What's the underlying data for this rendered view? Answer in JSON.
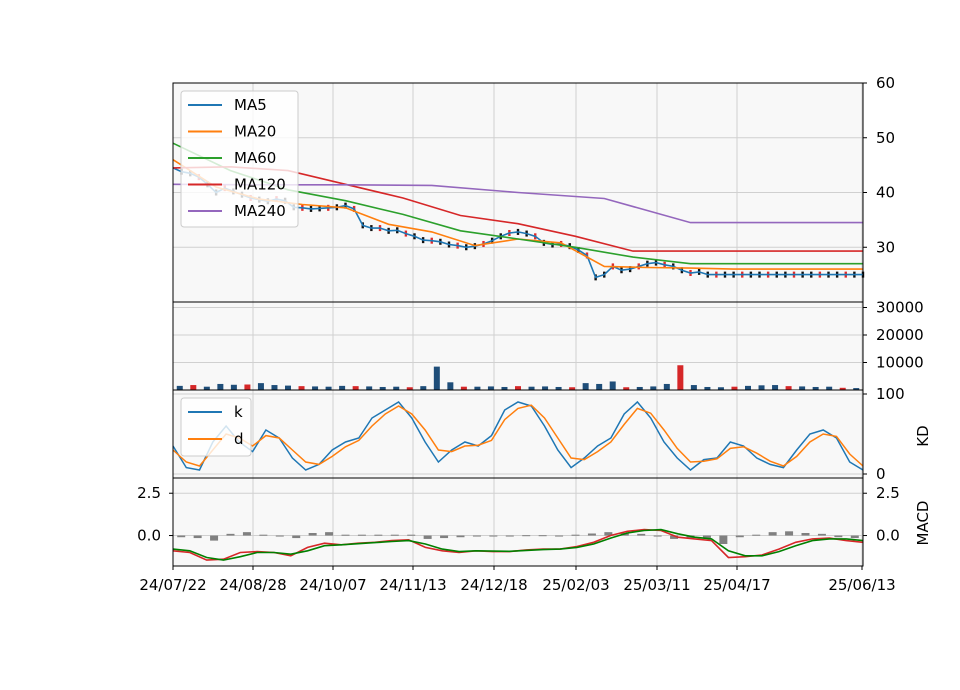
{
  "chart_data": [
    {
      "type": "line",
      "panel": "price",
      "title": "",
      "ylim": [
        20,
        60
      ],
      "yticks": [
        30,
        40,
        50,
        60
      ],
      "yaxis_side": "right",
      "grid": true,
      "legend_position": "top-left",
      "candles": {
        "up_color": "#e02a2a",
        "down_color": "#111111",
        "note_colors_only": true
      },
      "series": [
        {
          "name": "MA5",
          "color": "#1f77b4",
          "x": [
            0,
            3,
            6,
            9,
            12,
            15,
            18,
            21,
            24,
            27,
            30,
            33,
            36,
            39,
            42,
            45,
            48,
            51,
            54,
            57,
            60,
            63,
            66,
            69,
            72,
            75,
            78,
            81,
            84,
            87,
            90,
            93,
            96,
            99,
            102,
            105,
            108,
            111,
            114,
            117,
            120,
            123,
            126,
            129,
            132,
            135,
            138,
            141,
            144,
            147,
            150,
            153,
            156,
            159,
            162,
            165,
            168,
            171,
            174,
            177,
            180,
            183,
            186,
            189,
            192,
            195,
            198,
            201,
            204,
            207,
            210,
            213,
            216,
            219,
            222,
            225,
            228,
            231,
            234,
            237,
            240
          ],
          "y": [
            44.5,
            43.8,
            43.5,
            42.8,
            41.5,
            40.0,
            40.8,
            40.2,
            39.6,
            39.0,
            38.7,
            38.4,
            38.8,
            38.5,
            37.3,
            37.2,
            37.0,
            37.1,
            37.2,
            37.3,
            37.6,
            37.0,
            34.0,
            33.5,
            33.5,
            33.0,
            33.1,
            32.5,
            32.0,
            31.3,
            31.2,
            31.0,
            30.5,
            30.3,
            30.0,
            30.2,
            30.6,
            31.2,
            32.0,
            32.6,
            32.8,
            32.5,
            32.0,
            30.8,
            30.5,
            30.6,
            30.2,
            29.5,
            28.5,
            24.5,
            25.0,
            26.5,
            25.8,
            26.0,
            26.5,
            27.0,
            27.2,
            26.8,
            26.5,
            25.8,
            25.3,
            25.5,
            25.0,
            25.0,
            25.0,
            25.0,
            25.0,
            25.0,
            25.0,
            25.0,
            25.0,
            25.0,
            25.0,
            25.0,
            25.0,
            25.0,
            25.0,
            25.0,
            25.0,
            25.0,
            25.0
          ]
        },
        {
          "name": "MA20",
          "color": "#ff7f0e",
          "x": [
            0,
            15,
            30,
            45,
            60,
            75,
            90,
            105,
            120,
            135,
            150,
            165,
            180,
            195,
            210,
            225,
            240
          ],
          "y": [
            46.0,
            41.0,
            38.8,
            37.8,
            37.2,
            34.2,
            32.8,
            30.3,
            31.5,
            30.8,
            26.5,
            26.3,
            26.2,
            26.0,
            26.0,
            26.0,
            26.0
          ]
        },
        {
          "name": "MA60",
          "color": "#2ca02c",
          "x": [
            0,
            20,
            40,
            60,
            80,
            100,
            120,
            140,
            160,
            180,
            200,
            220,
            240
          ],
          "y": [
            49.0,
            44.0,
            40.5,
            38.5,
            36.0,
            33.0,
            31.5,
            30.0,
            28.2,
            27.0,
            27.0,
            27.0,
            27.0
          ]
        },
        {
          "name": "MA120",
          "color": "#d62728",
          "x": [
            0,
            20,
            40,
            60,
            80,
            100,
            120,
            140,
            160,
            180,
            200,
            220,
            240
          ],
          "y": [
            44.5,
            44.7,
            44.0,
            41.5,
            39.0,
            35.8,
            34.3,
            32.0,
            29.3,
            29.3,
            29.3,
            29.3,
            29.3
          ]
        },
        {
          "name": "MA240",
          "color": "#9467bd",
          "x": [
            0,
            30,
            60,
            90,
            120,
            150,
            180,
            210,
            240
          ],
          "y": [
            41.5,
            41.4,
            41.4,
            41.3,
            40.0,
            38.9,
            34.5,
            34.5,
            34.5
          ]
        }
      ]
    },
    {
      "type": "bar",
      "panel": "volume",
      "ylim": [
        0,
        30000
      ],
      "yticks": [
        10000,
        20000,
        30000
      ],
      "yaxis_side": "right",
      "grid": true,
      "bar_color": "#1f4e79",
      "values": [
        1500,
        1800,
        1200,
        2200,
        1900,
        2000,
        2500,
        1800,
        1600,
        1400,
        1300,
        1200,
        1500,
        1400,
        1300,
        1100,
        1200,
        1000,
        1400,
        8500,
        2800,
        1200,
        1200,
        1300,
        1100,
        1400,
        1200,
        1300,
        1100,
        1000,
        2500,
        2200,
        3100,
        1000,
        1100,
        1300,
        2200,
        9000,
        1800,
        1100,
        1000,
        1200,
        1500,
        1700,
        1800,
        1400,
        1300,
        1100,
        1200,
        800,
        700
      ]
    },
    {
      "type": "line",
      "panel": "kd",
      "ylim": [
        0,
        100
      ],
      "yticks": [
        0,
        100
      ],
      "yaxis_side": "right",
      "ylabel": "KD",
      "grid": true,
      "legend_position": "top-left",
      "series": [
        {
          "name": "k",
          "color": "#1f77b4",
          "values": [
            35,
            8,
            5,
            40,
            60,
            40,
            28,
            55,
            45,
            20,
            5,
            12,
            30,
            40,
            45,
            70,
            80,
            90,
            70,
            40,
            15,
            30,
            40,
            35,
            48,
            80,
            90,
            85,
            60,
            30,
            8,
            20,
            35,
            45,
            75,
            90,
            70,
            40,
            20,
            5,
            18,
            20,
            40,
            35,
            20,
            12,
            8,
            30,
            50,
            55,
            45,
            15,
            5
          ]
        },
        {
          "name": "d",
          "color": "#ff7f0e",
          "values": [
            30,
            15,
            10,
            30,
            50,
            45,
            35,
            48,
            45,
            30,
            15,
            12,
            22,
            34,
            42,
            60,
            75,
            85,
            75,
            55,
            30,
            28,
            35,
            36,
            42,
            68,
            82,
            86,
            70,
            45,
            20,
            18,
            28,
            40,
            62,
            82,
            76,
            55,
            32,
            15,
            16,
            19,
            32,
            34,
            26,
            16,
            10,
            22,
            40,
            50,
            47,
            25,
            10
          ]
        }
      ]
    },
    {
      "type": "line",
      "panel": "macd",
      "ylim": [
        -1.8,
        3.4
      ],
      "yticks_left": [
        "0.0",
        "2.5"
      ],
      "yticks_right": [
        "0.0",
        "2.5"
      ],
      "ylabel": "MACD",
      "grid": true,
      "histogram_color": "#808080",
      "series": [
        {
          "name": "",
          "color": "#d62728",
          "values": [
            -0.9,
            -1.0,
            -1.45,
            -1.4,
            -1.0,
            -0.95,
            -1.0,
            -1.2,
            -0.7,
            -0.45,
            -0.55,
            -0.45,
            -0.4,
            -0.3,
            -0.25,
            -0.7,
            -0.9,
            -1.0,
            -0.9,
            -0.95,
            -0.95,
            -0.85,
            -0.8,
            -0.8,
            -0.65,
            -0.4,
            0.0,
            0.25,
            0.35,
            0.3,
            -0.1,
            -0.2,
            -0.3,
            -1.3,
            -1.25,
            -1.15,
            -0.8,
            -0.4,
            -0.2,
            -0.15,
            -0.3,
            -0.4
          ]
        },
        {
          "name": "",
          "color": "#008000",
          "values": [
            -0.8,
            -0.9,
            -1.3,
            -1.45,
            -1.25,
            -1.0,
            -1.0,
            -1.1,
            -0.9,
            -0.6,
            -0.55,
            -0.48,
            -0.42,
            -0.35,
            -0.3,
            -0.5,
            -0.8,
            -0.95,
            -0.9,
            -0.92,
            -0.93,
            -0.88,
            -0.83,
            -0.8,
            -0.7,
            -0.5,
            -0.15,
            0.15,
            0.3,
            0.35,
            0.1,
            -0.1,
            -0.2,
            -0.9,
            -1.2,
            -1.2,
            -0.95,
            -0.6,
            -0.3,
            -0.2,
            -0.2,
            -0.3
          ]
        }
      ],
      "histogram": [
        -0.1,
        -0.15,
        -0.3,
        0.1,
        0.2,
        0.05,
        -0.05,
        -0.15,
        0.15,
        0.2,
        0.05,
        0.05,
        0.05,
        0.05,
        0.05,
        -0.2,
        -0.15,
        -0.1,
        0.0,
        -0.05,
        -0.05,
        0.02,
        0.02,
        0.0,
        0.05,
        0.12,
        0.2,
        0.15,
        0.1,
        -0.05,
        -0.2,
        -0.15,
        -0.15,
        -0.5,
        -0.1,
        0.05,
        0.2,
        0.25,
        0.15,
        0.1,
        -0.1,
        -0.15
      ]
    }
  ],
  "xaxis": {
    "tick_labels": [
      "24/07/22",
      "24/08/28",
      "24/10/07",
      "24/11/13",
      "24/12/18",
      "25/02/03",
      "25/03/11",
      "25/04/17",
      "25/06/13"
    ]
  },
  "price_ticks": [
    "30",
    "40",
    "50",
    "60"
  ],
  "volume_ticks": [
    "10000",
    "20000",
    "30000"
  ],
  "kd_ticks": [
    "0",
    "100"
  ]
}
